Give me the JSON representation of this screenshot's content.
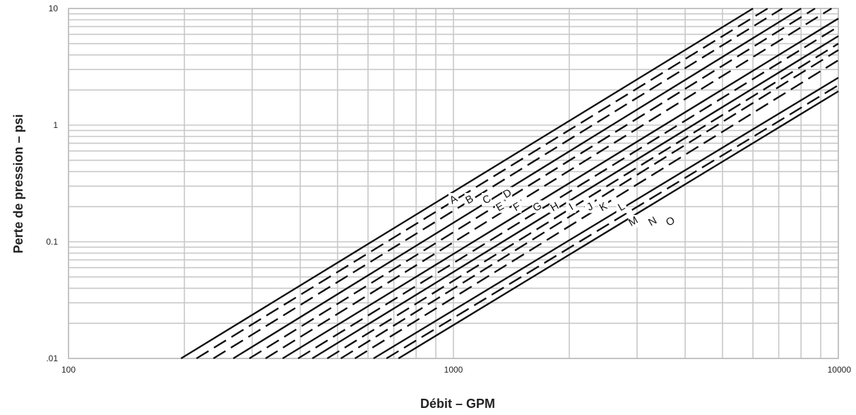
{
  "chart_data": {
    "type": "line",
    "title": "",
    "xlabel": "Débit – GPM",
    "ylabel": "Perte de pression – psi",
    "xscale": "log",
    "yscale": "log",
    "xlim": [
      100,
      10000
    ],
    "ylim": [
      0.01,
      10
    ],
    "grid": true,
    "legend": "none",
    "x_ticks": [
      {
        "value": 100,
        "label": "100"
      },
      {
        "value": 1000,
        "label": "1000"
      },
      {
        "value": 10000,
        "label": "10000"
      }
    ],
    "y_ticks": [
      {
        "value": 0.01,
        "label": ".01"
      },
      {
        "value": 0.1,
        "label": "0.1"
      },
      {
        "value": 1,
        "label": "1"
      },
      {
        "value": 10,
        "label": "10"
      }
    ],
    "series": [
      {
        "name": "A",
        "style": "solid",
        "points": [
          [
            196,
            0.01
          ],
          [
            6000,
            10
          ]
        ],
        "label_at": [
          1000,
          0.231
        ]
      },
      {
        "name": "B",
        "style": "dashed",
        "points": [
          [
            215,
            0.01
          ],
          [
            6550,
            10
          ]
        ],
        "label_at": [
          1100,
          0.231
        ]
      },
      {
        "name": "C",
        "style": "dashed",
        "points": [
          [
            238,
            0.01
          ],
          [
            7150,
            10
          ]
        ],
        "label_at": [
          1220,
          0.231
        ]
      },
      {
        "name": "D",
        "style": "solid",
        "points": [
          [
            268,
            0.01
          ],
          [
            8000,
            10
          ]
        ],
        "label_at": [
          1380,
          0.26
        ]
      },
      {
        "name": "E",
        "style": "dashed",
        "points": [
          [
            295,
            0.01
          ],
          [
            8700,
            10
          ]
        ],
        "label_at": [
          1320,
          0.2
        ]
      },
      {
        "name": "F",
        "style": "dashed",
        "points": [
          [
            325,
            0.01
          ],
          [
            9600,
            10
          ]
        ],
        "label_at": [
          1460,
          0.2
        ]
      },
      {
        "name": "G",
        "style": "solid",
        "points": [
          [
            360,
            0.01
          ],
          [
            10000,
            8.2
          ]
        ],
        "label_at": [
          1650,
          0.2
        ]
      },
      {
        "name": "H",
        "style": "dashed",
        "points": [
          [
            395,
            0.01
          ],
          [
            10000,
            7.0
          ]
        ],
        "label_at": [
          1830,
          0.2
        ]
      },
      {
        "name": "I",
        "style": "solid",
        "points": [
          [
            430,
            0.01
          ],
          [
            10000,
            5.8
          ]
        ],
        "label_at": [
          2020,
          0.2
        ]
      },
      {
        "name": "J",
        "style": "dashed",
        "points": [
          [
            470,
            0.01
          ],
          [
            10000,
            5.0
          ]
        ],
        "label_at": [
          2260,
          0.2
        ]
      },
      {
        "name": "K",
        "style": "dashed",
        "points": [
          [
            510,
            0.01
          ],
          [
            10000,
            4.4
          ]
        ],
        "label_at": [
          2450,
          0.2
        ]
      },
      {
        "name": "L",
        "style": "dashed",
        "points": [
          [
            555,
            0.01
          ],
          [
            10000,
            3.6
          ]
        ],
        "label_at": [
          2730,
          0.2
        ]
      },
      {
        "name": "M",
        "style": "solid",
        "points": [
          [
            620,
            0.01
          ],
          [
            10000,
            2.55
          ]
        ],
        "label_at": [
          2930,
          0.15
        ]
      },
      {
        "name": "N",
        "style": "dashed",
        "points": [
          [
            670,
            0.01
          ],
          [
            10000,
            2.2
          ]
        ],
        "label_at": [
          3290,
          0.15
        ]
      },
      {
        "name": "O",
        "style": "solid",
        "points": [
          [
            720,
            0.01
          ],
          [
            10000,
            1.95
          ]
        ],
        "label_at": [
          3660,
          0.15
        ]
      }
    ]
  }
}
